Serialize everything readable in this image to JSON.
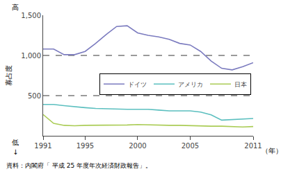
{
  "chart_data": {
    "type": "line",
    "x": [
      1991,
      1992,
      1993,
      1994,
      1995,
      1996,
      1997,
      1998,
      1999,
      2000,
      2001,
      2002,
      2003,
      2004,
      2005,
      2006,
      2007,
      2008,
      2009,
      2010,
      2011
    ],
    "series": [
      {
        "name": "ドイツ",
        "color": "#7b7bbf",
        "values": [
          1080,
          1080,
          1010,
          1010,
          1050,
          1150,
          1260,
          1360,
          1370,
          1280,
          1250,
          1230,
          1200,
          1150,
          1130,
          1050,
          930,
          840,
          820,
          860,
          910
        ]
      },
      {
        "name": "アメリカ",
        "color": "#5bbfbf",
        "values": [
          390,
          390,
          375,
          360,
          350,
          340,
          335,
          330,
          330,
          330,
          330,
          320,
          310,
          310,
          310,
          295,
          260,
          195,
          200,
          210,
          215
        ]
      },
      {
        "name": "日本",
        "color": "#aacc55",
        "values": [
          265,
          155,
          130,
          125,
          130,
          130,
          130,
          135,
          135,
          140,
          135,
          130,
          130,
          130,
          125,
          125,
          120,
          120,
          115,
          110,
          115
        ]
      }
    ],
    "xlim": [
      1991,
      2011
    ],
    "xticks": [
      1991,
      1995,
      2000,
      2005,
      2011
    ],
    "ylim": [
      0,
      1500
    ],
    "yticks": [
      500,
      {
        "value": 1000,
        "label": "1,000"
      },
      {
        "value": 1500,
        "label": "1,500"
      }
    ],
    "hlines": [
      500,
      1000
    ],
    "grid": false,
    "legend": "right",
    "x_label": "（年）",
    "y_label": "寡占度",
    "y_label_top": "高",
    "y_label_bottom": "低",
    "y_label_arrow": "↓",
    "source": "資料：内閣府「 平成 25 年度年次経済財政報告」。"
  }
}
